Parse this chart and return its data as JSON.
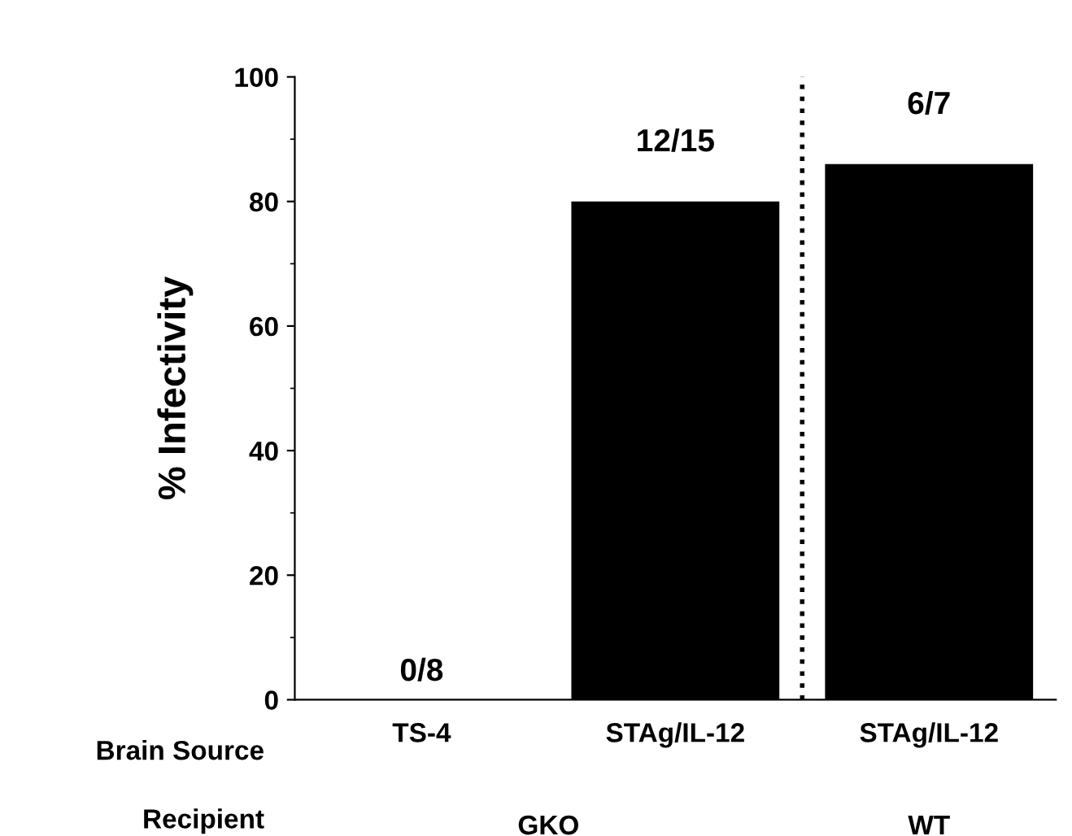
{
  "chart_data": {
    "type": "bar",
    "ylabel": "% Infectivity",
    "categories": [
      "TS-4",
      "STAg/IL-12",
      "STAg/IL-12"
    ],
    "values": [
      0,
      80,
      86
    ],
    "color": "#000000",
    "value_labels": [
      "0/8",
      "12/15",
      "6/7"
    ],
    "ylim": [
      0,
      100
    ],
    "yticks": [
      0,
      20,
      40,
      60,
      80,
      100
    ],
    "annotations": [
      "Brain Source",
      "Recipient",
      "GKO",
      "WT"
    ],
    "grid": false
  }
}
